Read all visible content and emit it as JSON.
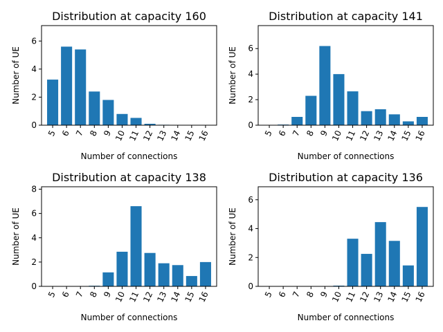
{
  "chart_data": [
    {
      "type": "bar",
      "title": "Distribution at capacity 160",
      "xlabel": "Number of connections",
      "ylabel": "Number of UE",
      "categories": [
        "5",
        "6",
        "7",
        "8",
        "9",
        "10",
        "11",
        "12",
        "13",
        "14",
        "15",
        "16"
      ],
      "values": [
        3.25,
        5.6,
        5.4,
        2.4,
        1.8,
        0.8,
        0.52,
        0.1,
        0.03,
        0.0,
        0.0,
        0.0
      ],
      "ylim": [
        0,
        7.1
      ],
      "yticks": [
        0,
        2,
        4,
        6
      ],
      "color": "#1f77b4"
    },
    {
      "type": "bar",
      "title": "Distribution at capacity 141",
      "xlabel": "Number of connections",
      "ylabel": "Number of UE",
      "categories": [
        "5",
        "6",
        "7",
        "8",
        "9",
        "10",
        "11",
        "12",
        "13",
        "14",
        "15",
        "16"
      ],
      "values": [
        0.0,
        0.05,
        0.65,
        2.3,
        6.2,
        4.0,
        2.65,
        1.1,
        1.25,
        0.85,
        0.3,
        0.65
      ],
      "ylim": [
        0,
        7.8
      ],
      "yticks": [
        0,
        2,
        4,
        6
      ],
      "color": "#1f77b4"
    },
    {
      "type": "bar",
      "title": "Distribution at capacity 138",
      "xlabel": "Number of connections",
      "ylabel": "Number of UE",
      "categories": [
        "5",
        "6",
        "7",
        "8",
        "9",
        "10",
        "11",
        "12",
        "13",
        "14",
        "15",
        "16"
      ],
      "values": [
        0.0,
        0.0,
        0.02,
        0.05,
        1.15,
        2.85,
        6.6,
        2.75,
        1.9,
        1.75,
        0.85,
        2.0
      ],
      "ylim": [
        0,
        8.2
      ],
      "yticks": [
        0,
        2,
        4,
        6,
        8
      ],
      "color": "#1f77b4"
    },
    {
      "type": "bar",
      "title": "Distribution at capacity 136",
      "xlabel": "Number of connections",
      "ylabel": "Number of UE",
      "categories": [
        "5",
        "6",
        "7",
        "8",
        "9",
        "10",
        "11",
        "12",
        "13",
        "14",
        "15",
        "16"
      ],
      "values": [
        0.0,
        0.0,
        0.0,
        0.0,
        0.0,
        0.05,
        3.3,
        2.25,
        4.45,
        3.15,
        1.45,
        5.5
      ],
      "ylim": [
        0,
        6.9
      ],
      "yticks": [
        0,
        2,
        4,
        6
      ],
      "color": "#1f77b4"
    }
  ]
}
